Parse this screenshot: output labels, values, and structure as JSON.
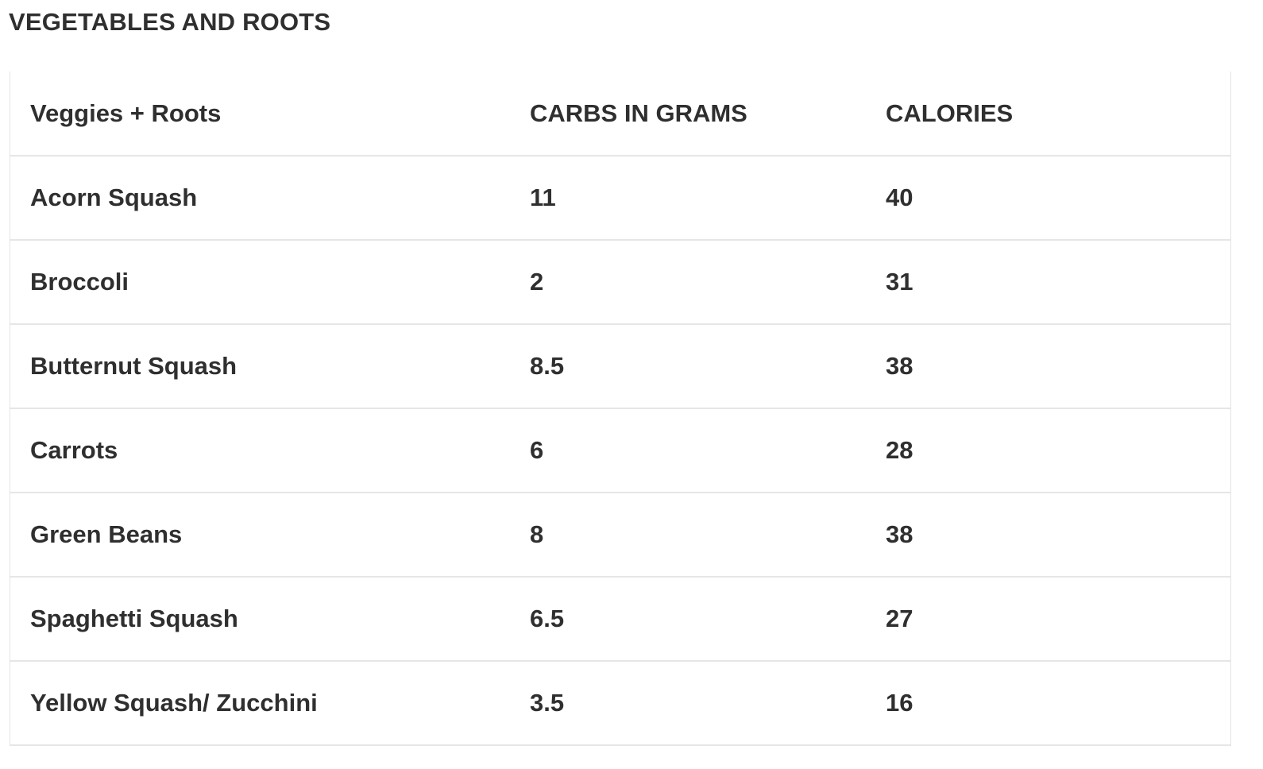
{
  "section": {
    "title": "VEGETABLES AND ROOTS"
  },
  "table": {
    "headers": [
      "Veggies + Roots",
      "CARBS IN GRAMS",
      "CALORIES"
    ],
    "rows": [
      [
        "Acorn Squash",
        "11",
        "40"
      ],
      [
        "Broccoli",
        "2",
        "31"
      ],
      [
        "Butternut Squash",
        "8.5",
        "38"
      ],
      [
        "Carrots",
        "6",
        "28"
      ],
      [
        "Green Beans",
        "8",
        "38"
      ],
      [
        "Spaghetti Squash",
        "6.5",
        "27"
      ],
      [
        "Yellow Squash/ Zucchini",
        "3.5",
        "16"
      ]
    ]
  }
}
